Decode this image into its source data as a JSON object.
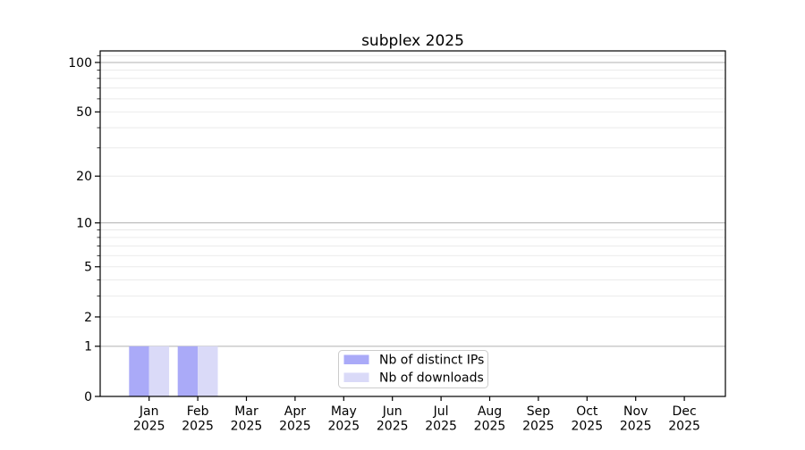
{
  "chart_data": {
    "type": "bar",
    "title": "subplex 2025",
    "xlabel": "",
    "ylabel": "",
    "yscale": "log1p",
    "ylim": [
      0,
      117.5
    ],
    "grid": "horizontal-only",
    "legend_position": "inside-bottom-center",
    "x_categories": [
      {
        "month": "Jan",
        "year": "2025"
      },
      {
        "month": "Feb",
        "year": "2025"
      },
      {
        "month": "Mar",
        "year": "2025"
      },
      {
        "month": "Apr",
        "year": "2025"
      },
      {
        "month": "May",
        "year": "2025"
      },
      {
        "month": "Jun",
        "year": "2025"
      },
      {
        "month": "Jul",
        "year": "2025"
      },
      {
        "month": "Aug",
        "year": "2025"
      },
      {
        "month": "Sep",
        "year": "2025"
      },
      {
        "month": "Oct",
        "year": "2025"
      },
      {
        "month": "Nov",
        "year": "2025"
      },
      {
        "month": "Dec",
        "year": "2025"
      }
    ],
    "series": [
      {
        "name": "Nb of distinct IPs",
        "color": "#aaaaf8",
        "values": [
          1,
          1,
          0,
          0,
          0,
          0,
          0,
          0,
          0,
          0,
          0,
          0
        ]
      },
      {
        "name": "Nb of downloads",
        "color": "#dadaf8",
        "values": [
          1,
          1,
          0,
          0,
          0,
          0,
          0,
          0,
          0,
          0,
          0,
          0
        ]
      }
    ],
    "y_tick_values": [
      0,
      1,
      2,
      5,
      10,
      20,
      50,
      100
    ],
    "y_tick_labels": [
      "0",
      "1",
      "2",
      "5",
      "10",
      "20",
      "50",
      "100"
    ],
    "y_decade_gridlines": [
      1,
      10,
      100
    ],
    "y_minor_gridlines": [
      2,
      3,
      4,
      5,
      6,
      7,
      8,
      9,
      20,
      30,
      40,
      50,
      60,
      70,
      80,
      90,
      110
    ],
    "y_minor_ticks": [
      3,
      4,
      6,
      7,
      8,
      9,
      30,
      40,
      60,
      70,
      80,
      90,
      110
    ],
    "colors": {
      "spine": "#000000",
      "tick": "#000000",
      "text": "#000000",
      "grid_decade": "#b0b0b0",
      "grid_minor": "#e8e8e8",
      "legend_border": "#cccccc",
      "legend_background": "#ffffff",
      "figure_background": "#ffffff"
    }
  }
}
